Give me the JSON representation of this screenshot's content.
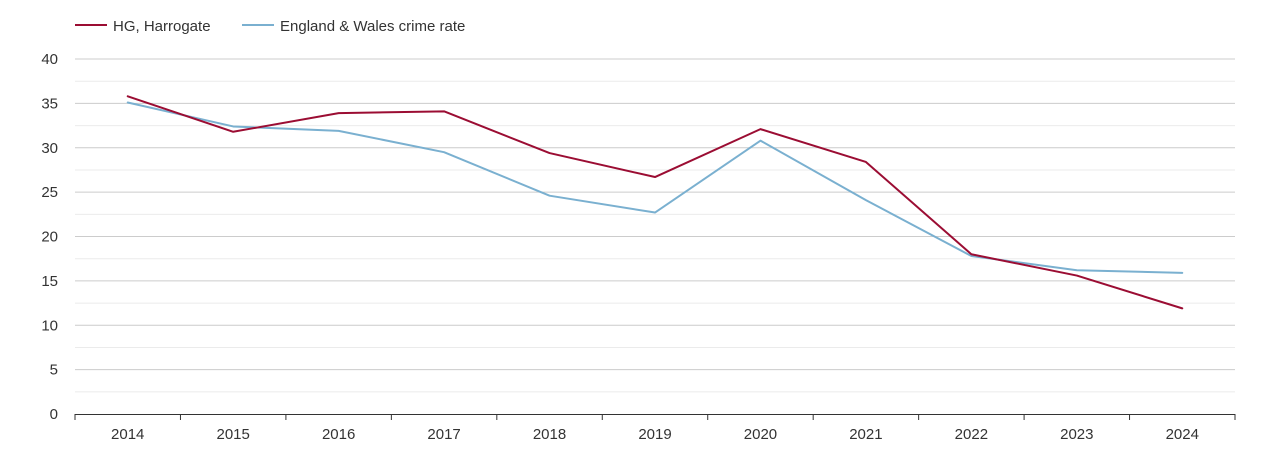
{
  "chart_data": {
    "type": "line",
    "x": [
      "2014",
      "2015",
      "2016",
      "2017",
      "2018",
      "2019",
      "2020",
      "2021",
      "2022",
      "2023",
      "2024"
    ],
    "ylim": [
      0,
      40
    ],
    "yticks": [
      0,
      5,
      10,
      15,
      20,
      25,
      30,
      35,
      40
    ],
    "grid": true,
    "legend_position": "top-left",
    "series": [
      {
        "name": "HG, Harrogate",
        "color": "#9b0d33",
        "values": [
          35.8,
          31.8,
          33.9,
          34.1,
          29.4,
          26.7,
          32.1,
          28.4,
          18.0,
          15.6,
          11.9
        ]
      },
      {
        "name": "England & Wales crime rate",
        "color": "#7ab0d0",
        "values": [
          35.1,
          32.4,
          31.9,
          29.5,
          24.6,
          22.7,
          30.8,
          24.1,
          17.8,
          16.2,
          15.9
        ]
      }
    ]
  }
}
